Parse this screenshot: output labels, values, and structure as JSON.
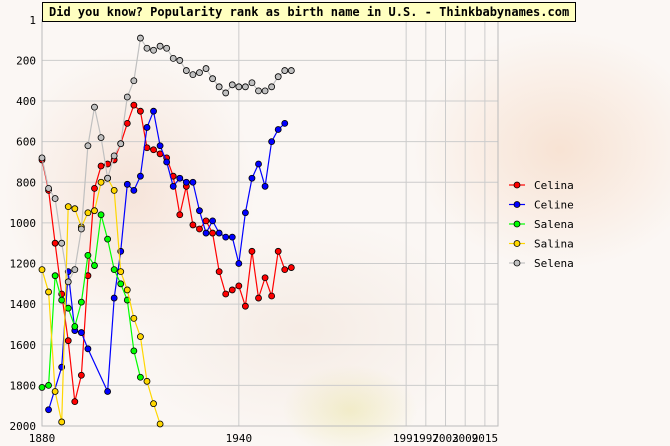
{
  "title": "Did you know? Popularity rank as birth name in U.S. - Thinkbabynames.com",
  "chart_data": {
    "type": "line",
    "y_inverted": true,
    "ylim": [
      1,
      2000
    ],
    "xlim": [
      1880,
      2019
    ],
    "y_ticks": [
      1,
      200,
      400,
      600,
      800,
      1000,
      1200,
      1400,
      1600,
      1800,
      2000
    ],
    "x_ticks": [
      1880,
      1940,
      1991,
      1997,
      2003,
      2009,
      2015
    ],
    "x_tick_labels": [
      "1880",
      "1940",
      "1991",
      "1997",
      "2003",
      "2009",
      "2015"
    ],
    "grid": true,
    "legend_position": "right",
    "series": [
      {
        "name": "Celina",
        "color": "#ff0000",
        "points": [
          [
            1880,
            690
          ],
          [
            1882,
            840
          ],
          [
            1884,
            1100
          ],
          [
            1886,
            1350
          ],
          [
            1888,
            1580
          ],
          [
            1890,
            1880
          ],
          [
            1892,
            1750
          ],
          [
            1894,
            1260
          ],
          [
            1896,
            830
          ],
          [
            1898,
            720
          ],
          [
            1900,
            710
          ],
          [
            1902,
            690
          ],
          [
            1904,
            610
          ],
          [
            1906,
            510
          ],
          [
            1908,
            420
          ],
          [
            1910,
            450
          ],
          [
            1912,
            630
          ],
          [
            1914,
            640
          ],
          [
            1916,
            660
          ],
          [
            1918,
            680
          ],
          [
            1920,
            770
          ],
          [
            1922,
            960
          ],
          [
            1924,
            820
          ],
          [
            1926,
            1010
          ],
          [
            1928,
            1030
          ],
          [
            1930,
            990
          ],
          [
            1932,
            1050
          ],
          [
            1934,
            1240
          ],
          [
            1936,
            1350
          ],
          [
            1938,
            1330
          ],
          [
            1940,
            1310
          ],
          [
            1942,
            1410
          ],
          [
            1944,
            1140
          ],
          [
            1946,
            1370
          ],
          [
            1948,
            1270
          ],
          [
            1950,
            1360
          ],
          [
            1952,
            1140
          ],
          [
            1954,
            1230
          ],
          [
            1956,
            1220
          ]
        ]
      },
      {
        "name": "Celine",
        "color": "#0000ff",
        "points": [
          [
            1882,
            1920
          ],
          [
            1886,
            1710
          ],
          [
            1888,
            1240
          ],
          [
            1890,
            1530
          ],
          [
            1892,
            1540
          ],
          [
            1894,
            1620
          ],
          [
            1900,
            1830
          ],
          [
            1902,
            1370
          ],
          [
            1904,
            1140
          ],
          [
            1906,
            810
          ],
          [
            1908,
            840
          ],
          [
            1910,
            770
          ],
          [
            1912,
            530
          ],
          [
            1914,
            450
          ],
          [
            1916,
            620
          ],
          [
            1918,
            700
          ],
          [
            1920,
            820
          ],
          [
            1922,
            780
          ],
          [
            1924,
            800
          ],
          [
            1926,
            800
          ],
          [
            1928,
            940
          ],
          [
            1930,
            1050
          ],
          [
            1932,
            990
          ],
          [
            1934,
            1050
          ],
          [
            1936,
            1070
          ],
          [
            1938,
            1070
          ],
          [
            1940,
            1200
          ],
          [
            1942,
            950
          ],
          [
            1944,
            780
          ],
          [
            1946,
            710
          ],
          [
            1948,
            820
          ],
          [
            1950,
            600
          ],
          [
            1952,
            540
          ],
          [
            1954,
            510
          ]
        ]
      },
      {
        "name": "Salena",
        "color": "#00ff00",
        "points": [
          [
            1880,
            1810
          ],
          [
            1882,
            1800
          ],
          [
            1884,
            1260
          ],
          [
            1886,
            1380
          ],
          [
            1888,
            1420
          ],
          [
            1890,
            1510
          ],
          [
            1892,
            1390
          ],
          [
            1894,
            1160
          ],
          [
            1896,
            1210
          ],
          [
            1898,
            960
          ],
          [
            1900,
            1080
          ],
          [
            1902,
            1230
          ],
          [
            1904,
            1300
          ],
          [
            1906,
            1380
          ],
          [
            1908,
            1630
          ],
          [
            1910,
            1760
          ]
        ]
      },
      {
        "name": "Salina",
        "color": "#ffd700",
        "points": [
          [
            1880,
            1230
          ],
          [
            1882,
            1340
          ],
          [
            1884,
            1830
          ],
          [
            1886,
            1980
          ],
          [
            1888,
            920
          ],
          [
            1890,
            930
          ],
          [
            1892,
            1020
          ],
          [
            1894,
            950
          ],
          [
            1896,
            940
          ],
          [
            1898,
            800
          ],
          [
            1900,
            780
          ],
          [
            1902,
            840
          ],
          [
            1904,
            1240
          ],
          [
            1906,
            1330
          ],
          [
            1908,
            1470
          ],
          [
            1910,
            1560
          ],
          [
            1912,
            1780
          ],
          [
            1914,
            1890
          ],
          [
            1916,
            1990
          ]
        ]
      },
      {
        "name": "Selena",
        "color": "#c0c0c0",
        "points": [
          [
            1880,
            680
          ],
          [
            1882,
            830
          ],
          [
            1884,
            880
          ],
          [
            1886,
            1100
          ],
          [
            1888,
            1290
          ],
          [
            1890,
            1230
          ],
          [
            1892,
            1030
          ],
          [
            1894,
            620
          ],
          [
            1896,
            430
          ],
          [
            1898,
            580
          ],
          [
            1900,
            780
          ],
          [
            1902,
            670
          ],
          [
            1904,
            610
          ],
          [
            1906,
            380
          ],
          [
            1908,
            300
          ],
          [
            1910,
            90
          ],
          [
            1912,
            140
          ],
          [
            1914,
            150
          ],
          [
            1916,
            130
          ],
          [
            1918,
            140
          ],
          [
            1920,
            190
          ],
          [
            1922,
            200
          ],
          [
            1924,
            250
          ],
          [
            1926,
            270
          ],
          [
            1928,
            260
          ],
          [
            1930,
            240
          ],
          [
            1932,
            290
          ],
          [
            1934,
            330
          ],
          [
            1936,
            360
          ],
          [
            1938,
            320
          ],
          [
            1940,
            330
          ],
          [
            1942,
            330
          ],
          [
            1944,
            310
          ],
          [
            1946,
            350
          ],
          [
            1948,
            350
          ],
          [
            1950,
            330
          ],
          [
            1952,
            280
          ],
          [
            1954,
            250
          ],
          [
            1956,
            250
          ]
        ]
      }
    ]
  }
}
